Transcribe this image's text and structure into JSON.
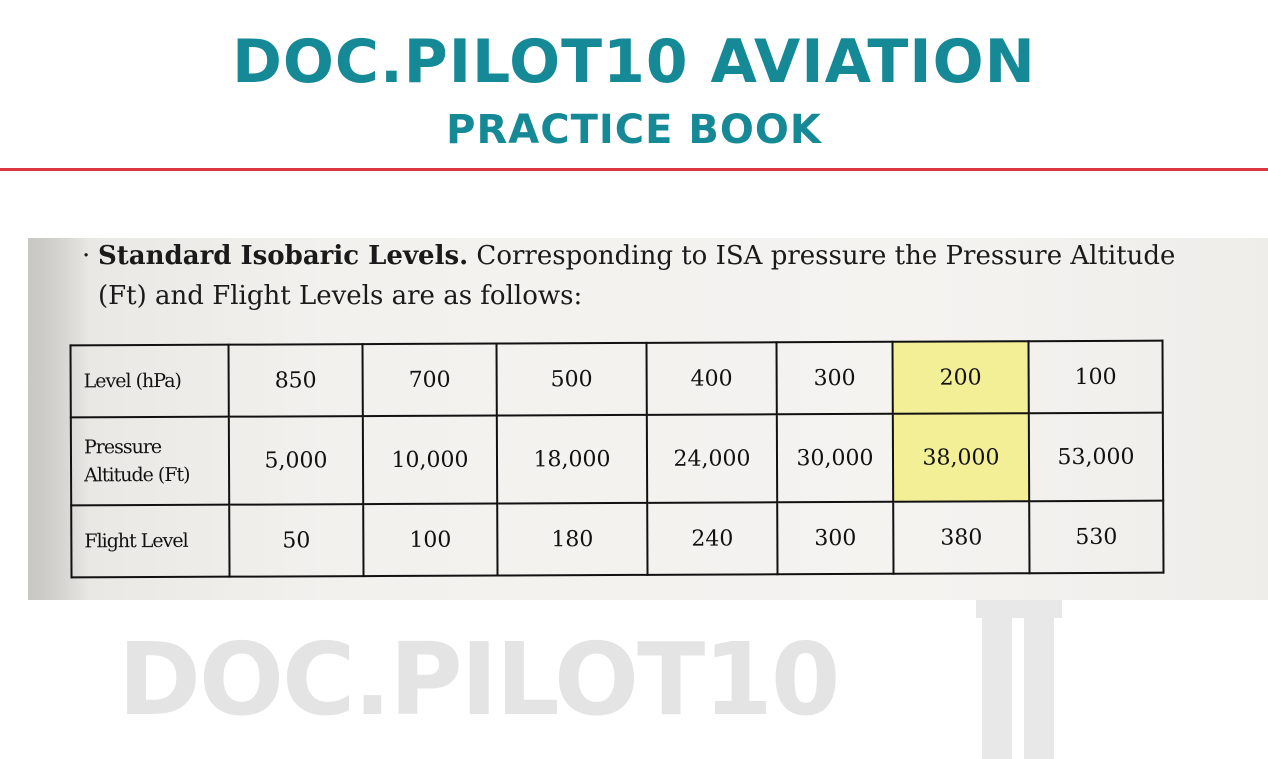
{
  "header": {
    "title": "DOC.PILOT10 AVIATION",
    "subtitle": "PRACTICE BOOK"
  },
  "intro": {
    "heading": "Standard Isobaric Levels.",
    "text": " Corresponding to ISA pressure the Pressure Altitude (Ft) and Flight Levels are as follows:"
  },
  "table": {
    "rows": [
      {
        "label": "Level (hPa)",
        "values": [
          "850",
          "700",
          "500",
          "400",
          "300",
          "200",
          "100"
        ]
      },
      {
        "label": "Pressure Altitude (Ft)",
        "values": [
          "5,000",
          "10,000",
          "18,000",
          "24,000",
          "30,000",
          "38,000",
          "53,000"
        ]
      },
      {
        "label": "Flight Level",
        "values": [
          "50",
          "100",
          "180",
          "240",
          "300",
          "380",
          "530"
        ]
      }
    ],
    "highlighted_column": "200",
    "highlight_color": "#f2ef96"
  },
  "watermark": {
    "text": "DOC.PILOT10",
    "logo": "pilot-tie-logo"
  },
  "colors": {
    "brand_teal": "#158a96",
    "rule_red": "#d9363e"
  }
}
